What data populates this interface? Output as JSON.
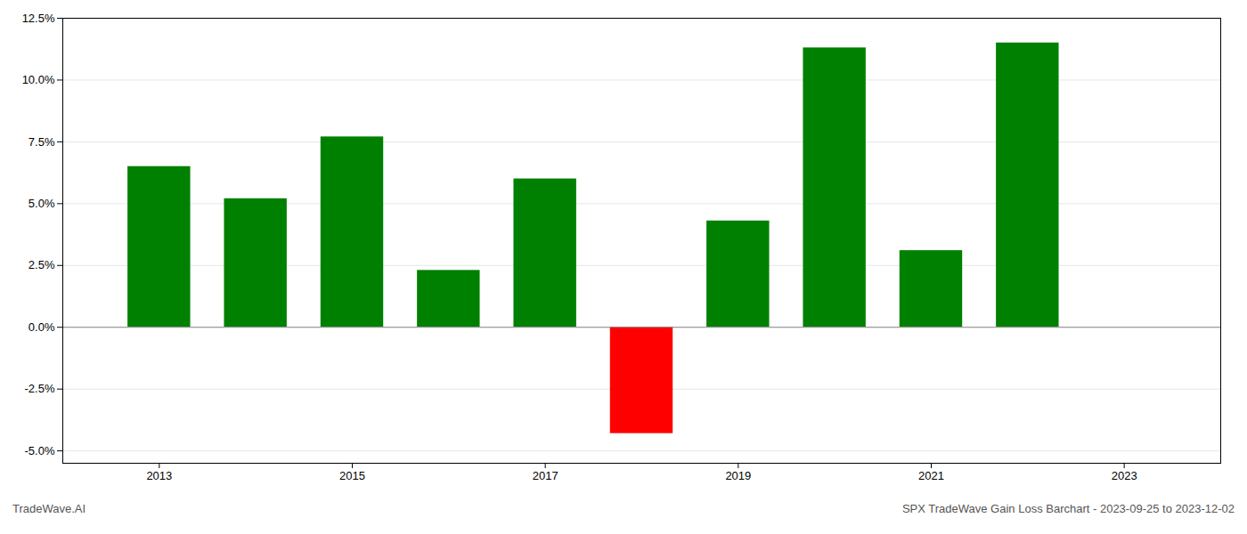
{
  "chart_data": {
    "type": "bar",
    "x": [
      2013,
      2014,
      2015,
      2016,
      2017,
      2018,
      2019,
      2020,
      2021,
      2022
    ],
    "values": [
      0.065,
      0.052,
      0.077,
      0.023,
      0.06,
      -0.043,
      0.043,
      0.113,
      0.031,
      0.115
    ],
    "colors": [
      "#008000",
      "#008000",
      "#008000",
      "#008000",
      "#008000",
      "#ff0000",
      "#008000",
      "#008000",
      "#008000",
      "#008000"
    ],
    "xlim": [
      2012.0,
      2024.0
    ],
    "xticks": [
      2013,
      2015,
      2017,
      2019,
      2021,
      2023
    ],
    "ylim": [
      -0.055,
      0.125
    ],
    "yticks": [
      {
        "value": -0.05,
        "label": "-5.0%"
      },
      {
        "value": -0.025,
        "label": "-2.5%"
      },
      {
        "value": 0.0,
        "label": "0.0%"
      },
      {
        "value": 0.025,
        "label": "2.5%"
      },
      {
        "value": 0.05,
        "label": "5.0%"
      },
      {
        "value": 0.075,
        "label": "7.5%"
      },
      {
        "value": 0.1,
        "label": "10.0%"
      },
      {
        "value": 0.125,
        "label": "12.5%"
      }
    ],
    "grid": true,
    "annotations": [
      "TradeWave.AI",
      "SPX TradeWave Gain Loss Barchart - 2023-09-25 to 2023-12-02"
    ]
  }
}
